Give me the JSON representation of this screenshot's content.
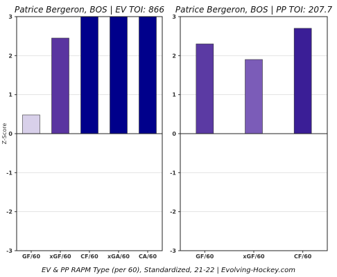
{
  "caption": "EV & PP RAPM Type (per 60), Standardized, 21-22    |    Evolving-Hockey.com",
  "ylabel": "Z-Score",
  "chart_data": [
    {
      "type": "bar",
      "title": "Patrice Bergeron, BOS  |  EV TOI: 866",
      "categories": [
        "GF/60",
        "xGF/60",
        "CF/60",
        "xGA/60",
        "CA/60"
      ],
      "values": [
        0.48,
        2.45,
        3.0,
        3.0,
        3.0
      ],
      "colors": [
        "#d8d0ea",
        "#5a35a0",
        "#00008b",
        "#00008b",
        "#00008b"
      ],
      "ylabel": "Z-Score",
      "ylim": [
        -3,
        3
      ],
      "yticks": [
        "-3",
        "-2",
        "-1",
        "0",
        "1",
        "2",
        "3"
      ],
      "grid": true
    },
    {
      "type": "bar",
      "title": "Patrice Bergeron, BOS  |  PP TOI: 207.7",
      "categories": [
        "GF/60",
        "xGF/60",
        "CF/60"
      ],
      "values": [
        2.3,
        1.9,
        2.7
      ],
      "colors": [
        "#5b3aa3",
        "#7b5cb8",
        "#3a1e96"
      ],
      "ylim": [
        -3,
        3
      ],
      "yticks": [
        "-3",
        "-2",
        "-1",
        "0",
        "1",
        "2",
        "3"
      ],
      "grid": true
    }
  ]
}
